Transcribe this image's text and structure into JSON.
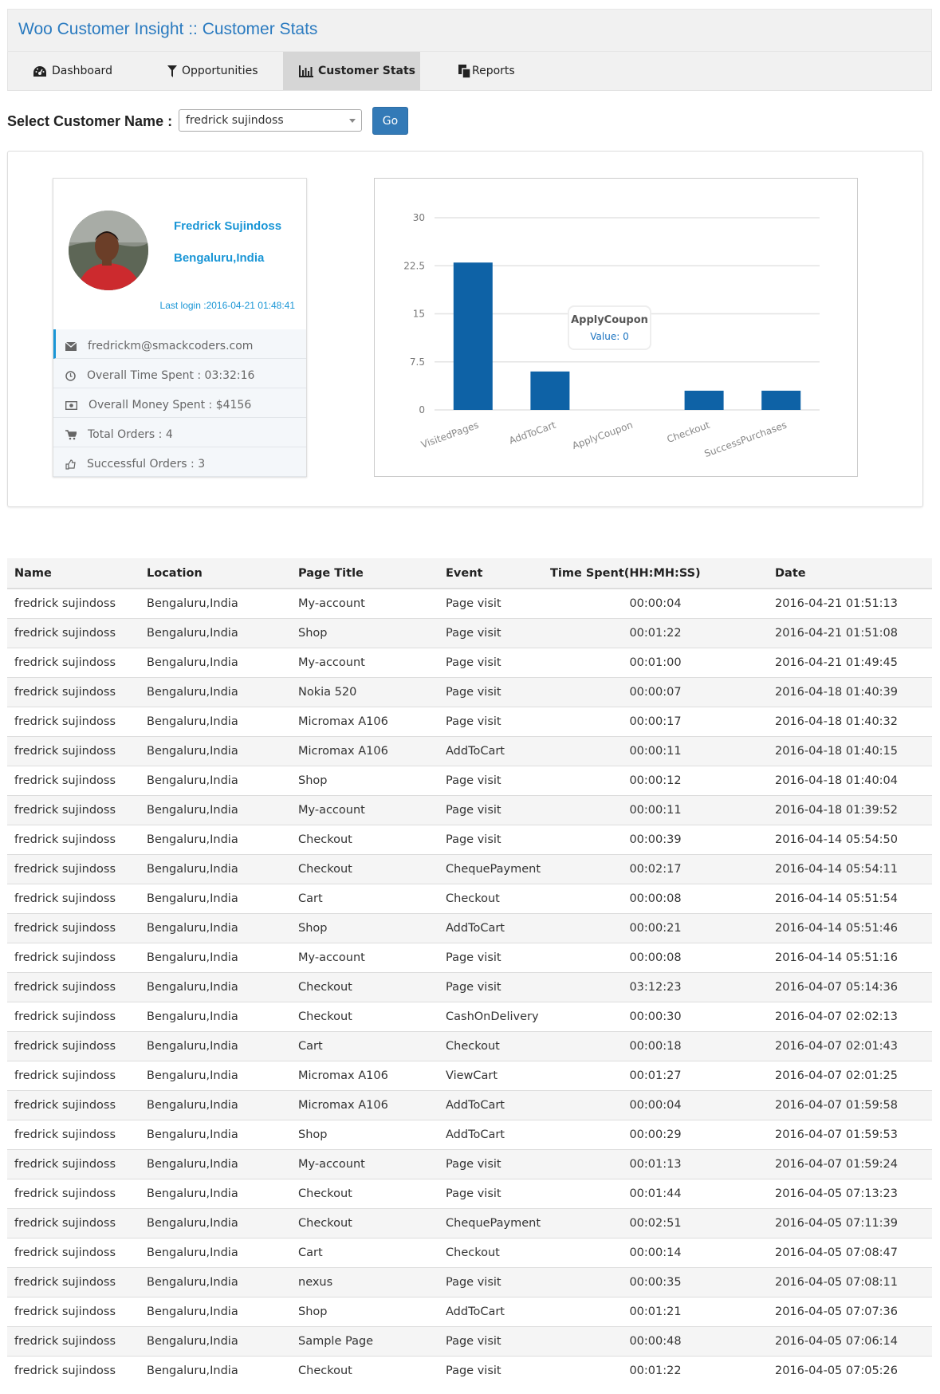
{
  "header": {
    "title": "Woo Customer Insight :: Customer Stats"
  },
  "nav": {
    "tabs": [
      {
        "label": "Dashboard",
        "icon": "dashboard-icon"
      },
      {
        "label": "Opportunities",
        "icon": "filter-icon"
      },
      {
        "label": "Customer Stats",
        "icon": "bar-chart-icon",
        "active": true
      },
      {
        "label": "Reports",
        "icon": "copy-icon"
      }
    ]
  },
  "selector": {
    "label": "Select Customer Name :",
    "value": "fredrick sujindoss",
    "go_label": "Go"
  },
  "profile": {
    "name": "Fredrick Sujindoss",
    "location": "Bengaluru,India",
    "last_login": "Last login :2016-04-21 01:48:41",
    "items": [
      {
        "icon": "envelope-icon",
        "text": "fredrickm@smackcoders.com"
      },
      {
        "icon": "clock-icon",
        "text": "Overall Time Spent : 03:32:16"
      },
      {
        "icon": "money-icon",
        "text": "Overall Money Spent : $4156"
      },
      {
        "icon": "cart-icon",
        "text": "Total Orders : 4"
      },
      {
        "icon": "thumbs-up-icon",
        "text": "Successful Orders : 3"
      }
    ]
  },
  "chart_data": {
    "type": "bar",
    "categories": [
      "VisitedPages",
      "AddToCart",
      "ApplyCoupon",
      "Checkout",
      "SuccessPurchases"
    ],
    "values": [
      23,
      6,
      0,
      3,
      3
    ],
    "ylim": [
      0,
      30
    ],
    "yticks": [
      "0",
      "7.5",
      "15",
      "22.5",
      "30"
    ],
    "grid": true,
    "bar_color": "#0e62a6",
    "tooltip": {
      "title": "ApplyCoupon",
      "value": "Value: 0"
    }
  },
  "table": {
    "headers": [
      "Name",
      "Location",
      "Page Title",
      "Event",
      "Time Spent(HH:MH:SS)",
      "Date"
    ],
    "rows": [
      [
        "fredrick sujindoss",
        "Bengaluru,India",
        "My-account",
        "Page visit",
        "00:00:04",
        "2016-04-21 01:51:13"
      ],
      [
        "fredrick sujindoss",
        "Bengaluru,India",
        "Shop",
        "Page visit",
        "00:01:22",
        "2016-04-21 01:51:08"
      ],
      [
        "fredrick sujindoss",
        "Bengaluru,India",
        "My-account",
        "Page visit",
        "00:01:00",
        "2016-04-21 01:49:45"
      ],
      [
        "fredrick sujindoss",
        "Bengaluru,India",
        "Nokia 520",
        "Page visit",
        "00:00:07",
        "2016-04-18 01:40:39"
      ],
      [
        "fredrick sujindoss",
        "Bengaluru,India",
        "Micromax A106",
        "Page visit",
        "00:00:17",
        "2016-04-18 01:40:32"
      ],
      [
        "fredrick sujindoss",
        "Bengaluru,India",
        "Micromax A106",
        "AddToCart",
        "00:00:11",
        "2016-04-18 01:40:15"
      ],
      [
        "fredrick sujindoss",
        "Bengaluru,India",
        "Shop",
        "Page visit",
        "00:00:12",
        "2016-04-18 01:40:04"
      ],
      [
        "fredrick sujindoss",
        "Bengaluru,India",
        "My-account",
        "Page visit",
        "00:00:11",
        "2016-04-18 01:39:52"
      ],
      [
        "fredrick sujindoss",
        "Bengaluru,India",
        "Checkout",
        "Page visit",
        "00:00:39",
        "2016-04-14 05:54:50"
      ],
      [
        "fredrick sujindoss",
        "Bengaluru,India",
        "Checkout",
        "ChequePayment",
        "00:02:17",
        "2016-04-14 05:54:11"
      ],
      [
        "fredrick sujindoss",
        "Bengaluru,India",
        "Cart",
        "Checkout",
        "00:00:08",
        "2016-04-14 05:51:54"
      ],
      [
        "fredrick sujindoss",
        "Bengaluru,India",
        "Shop",
        "AddToCart",
        "00:00:21",
        "2016-04-14 05:51:46"
      ],
      [
        "fredrick sujindoss",
        "Bengaluru,India",
        "My-account",
        "Page visit",
        "00:00:08",
        "2016-04-14 05:51:16"
      ],
      [
        "fredrick sujindoss",
        "Bengaluru,India",
        "Checkout",
        "Page visit",
        "03:12:23",
        "2016-04-07 05:14:36"
      ],
      [
        "fredrick sujindoss",
        "Bengaluru,India",
        "Checkout",
        "CashOnDelivery",
        "00:00:30",
        "2016-04-07 02:02:13"
      ],
      [
        "fredrick sujindoss",
        "Bengaluru,India",
        "Cart",
        "Checkout",
        "00:00:18",
        "2016-04-07 02:01:43"
      ],
      [
        "fredrick sujindoss",
        "Bengaluru,India",
        "Micromax A106",
        "ViewCart",
        "00:01:27",
        "2016-04-07 02:01:25"
      ],
      [
        "fredrick sujindoss",
        "Bengaluru,India",
        "Micromax A106",
        "AddToCart",
        "00:00:04",
        "2016-04-07 01:59:58"
      ],
      [
        "fredrick sujindoss",
        "Bengaluru,India",
        "Shop",
        "AddToCart",
        "00:00:29",
        "2016-04-07 01:59:53"
      ],
      [
        "fredrick sujindoss",
        "Bengaluru,India",
        "My-account",
        "Page visit",
        "00:01:13",
        "2016-04-07 01:59:24"
      ],
      [
        "fredrick sujindoss",
        "Bengaluru,India",
        "Checkout",
        "Page visit",
        "00:01:44",
        "2016-04-05 07:13:23"
      ],
      [
        "fredrick sujindoss",
        "Bengaluru,India",
        "Checkout",
        "ChequePayment",
        "00:02:51",
        "2016-04-05 07:11:39"
      ],
      [
        "fredrick sujindoss",
        "Bengaluru,India",
        "Cart",
        "Checkout",
        "00:00:14",
        "2016-04-05 07:08:47"
      ],
      [
        "fredrick sujindoss",
        "Bengaluru,India",
        "nexus",
        "Page visit",
        "00:00:35",
        "2016-04-05 07:08:11"
      ],
      [
        "fredrick sujindoss",
        "Bengaluru,India",
        "Shop",
        "AddToCart",
        "00:01:21",
        "2016-04-05 07:07:36"
      ],
      [
        "fredrick sujindoss",
        "Bengaluru,India",
        "Sample Page",
        "Page visit",
        "00:00:48",
        "2016-04-05 07:06:14"
      ],
      [
        "fredrick sujindoss",
        "Bengaluru,India",
        "Checkout",
        "Page visit",
        "00:01:22",
        "2016-04-05 07:05:26"
      ]
    ]
  }
}
